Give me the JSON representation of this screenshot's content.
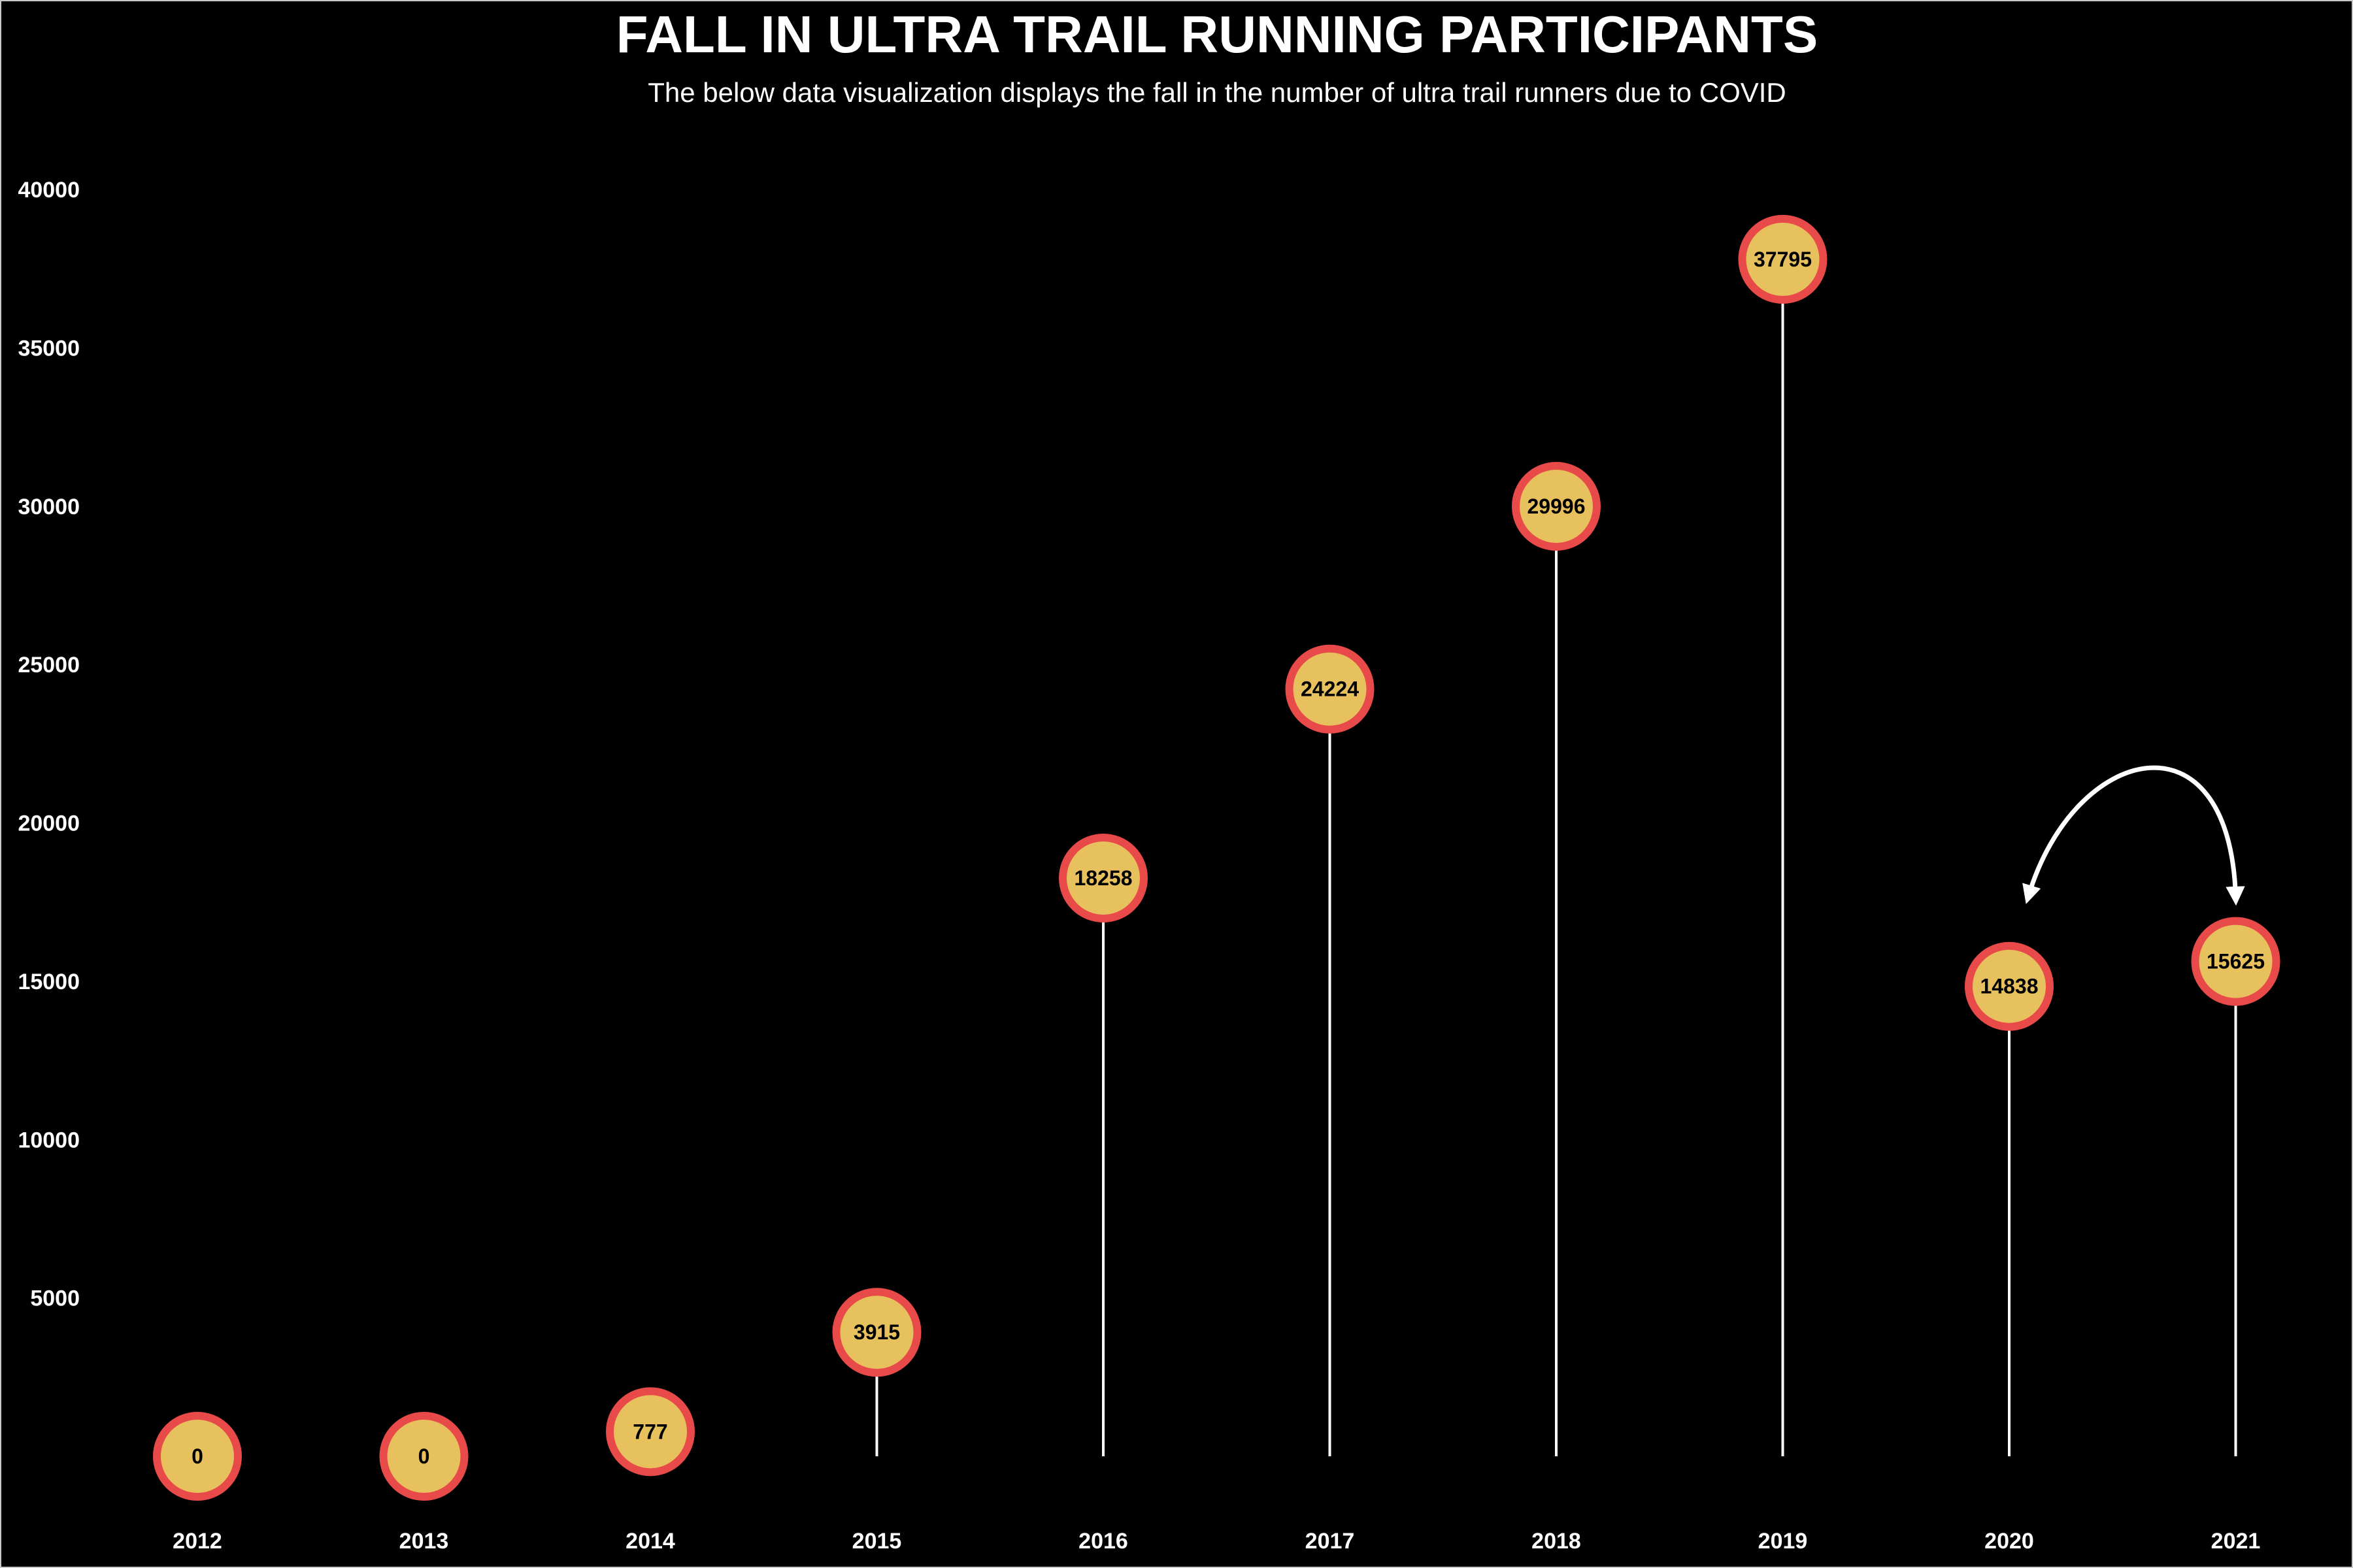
{
  "title": "FALL IN ULTRA TRAIL RUNNING PARTICIPANTS",
  "subtitle": "The below data visualization displays the fall in the number of ultra trail runners due to COVID",
  "colors": {
    "background": "#000000",
    "text": "#ffffff",
    "stem": "#ffffff",
    "marker_fill": "#e8c15f",
    "marker_stroke": "#e84a4a",
    "annotation_arrow": "#ffffff"
  },
  "chart_data": {
    "type": "scatter",
    "style": "lollipop",
    "title": "FALL IN ULTRA TRAIL RUNNING PARTICIPANTS",
    "subtitle": "The below data visualization displays the fall in the number of ultra trail runners due to COVID",
    "xlabel": "",
    "ylabel": "",
    "categories": [
      "2012",
      "2013",
      "2014",
      "2015",
      "2016",
      "2017",
      "2018",
      "2019",
      "2020",
      "2021"
    ],
    "values": [
      0,
      0,
      777,
      3915,
      18258,
      24224,
      29996,
      37795,
      14838,
      15625
    ],
    "data_labels": [
      "0",
      "0",
      "777",
      "3915",
      "18258",
      "24224",
      "29996",
      "37795",
      "14838",
      "15625"
    ],
    "y_ticks": [
      5000,
      10000,
      15000,
      20000,
      25000,
      30000,
      35000,
      40000
    ],
    "y_tick_labels": [
      "5000",
      "10000",
      "15000",
      "20000",
      "25000",
      "30000",
      "35000",
      "40000"
    ],
    "ylim": [
      0,
      40000
    ],
    "grid": false,
    "legend": "none",
    "annotation": {
      "type": "double-headed curved arrow",
      "from": "2020",
      "to": "2021"
    }
  }
}
